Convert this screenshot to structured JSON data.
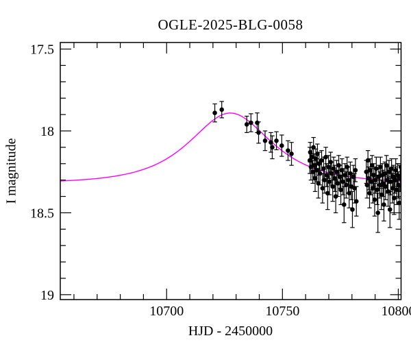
{
  "window": {
    "background": "#ffffff",
    "ink": "#000000"
  },
  "chart_data": {
    "type": "scatter",
    "title": "OGLE-2025-BLG-0058",
    "xlabel": "HJD - 2450000",
    "ylabel": "I magnitude",
    "grid": false,
    "legend": "none",
    "x_axis": {
      "range": [
        10654.1,
        10801.2
      ],
      "major_ticks": [
        10700,
        10750,
        10800
      ],
      "tick_labels": [
        "10700",
        "10750",
        "10800"
      ],
      "minor_step": 10
    },
    "y_axis": {
      "range": [
        17.46,
        19.03
      ],
      "inverted": true,
      "major_ticks": [
        17.5,
        18.0,
        18.5,
        19.0
      ],
      "tick_labels": [
        "17.5",
        "18",
        "18.5",
        "19"
      ],
      "minor_step": 0.1
    },
    "model_curve": {
      "kind": "paczynski_microlensing",
      "color": "#ff00ff",
      "baseline_mag": 18.32,
      "t0": 10727.5,
      "u0": 0.84,
      "tE_days": 23.5,
      "peak_mag": 17.89
    },
    "points_color": "#000000",
    "points": [
      [
        10720.8,
        17.89,
        0.055
      ],
      [
        10723.8,
        17.87,
        0.05
      ],
      [
        10734.6,
        17.96,
        0.05
      ],
      [
        10736.4,
        17.95,
        0.055
      ],
      [
        10739.1,
        17.95,
        0.06
      ],
      [
        10739.7,
        18.01,
        0.065
      ],
      [
        10742.5,
        18.06,
        0.06
      ],
      [
        10745.0,
        18.07,
        0.06
      ],
      [
        10745.6,
        18.1,
        0.07
      ],
      [
        10747.4,
        18.06,
        0.055
      ],
      [
        10749.7,
        18.09,
        0.065
      ],
      [
        10752.4,
        18.12,
        0.06
      ],
      [
        10753.9,
        18.14,
        0.07
      ],
      [
        10761.8,
        18.18,
        0.08
      ],
      [
        10762.0,
        18.13,
        0.06
      ],
      [
        10762.3,
        18.22,
        0.08
      ],
      [
        10762.8,
        18.16,
        0.06
      ],
      [
        10763.1,
        18.25,
        0.07
      ],
      [
        10763.4,
        18.1,
        0.06
      ],
      [
        10763.8,
        18.21,
        0.07
      ],
      [
        10764.1,
        18.29,
        0.08
      ],
      [
        10764.4,
        18.17,
        0.06
      ],
      [
        10764.8,
        18.24,
        0.07
      ],
      [
        10765.1,
        18.14,
        0.06
      ],
      [
        10765.5,
        18.32,
        0.09
      ],
      [
        10765.8,
        18.2,
        0.07
      ],
      [
        10766.2,
        18.26,
        0.07
      ],
      [
        10766.9,
        18.18,
        0.06
      ],
      [
        10767.3,
        18.35,
        0.09
      ],
      [
        10767.8,
        18.23,
        0.07
      ],
      [
        10768.2,
        18.3,
        0.08
      ],
      [
        10768.7,
        18.16,
        0.06
      ],
      [
        10769.1,
        18.27,
        0.07
      ],
      [
        10769.5,
        18.38,
        0.1
      ],
      [
        10769.9,
        18.22,
        0.07
      ],
      [
        10770.3,
        18.31,
        0.08
      ],
      [
        10770.8,
        18.19,
        0.06
      ],
      [
        10771.2,
        18.26,
        0.07
      ],
      [
        10771.7,
        18.34,
        0.09
      ],
      [
        10772.1,
        18.23,
        0.07
      ],
      [
        10772.6,
        18.29,
        0.08
      ],
      [
        10773.0,
        18.4,
        0.1
      ],
      [
        10773.4,
        18.25,
        0.07
      ],
      [
        10773.9,
        18.32,
        0.08
      ],
      [
        10774.3,
        18.21,
        0.06
      ],
      [
        10774.8,
        18.28,
        0.07
      ],
      [
        10775.2,
        18.36,
        0.09
      ],
      [
        10775.7,
        18.24,
        0.07
      ],
      [
        10776.1,
        18.31,
        0.08
      ],
      [
        10776.6,
        18.45,
        0.11
      ],
      [
        10777.0,
        18.27,
        0.07
      ],
      [
        10777.5,
        18.33,
        0.08
      ],
      [
        10777.9,
        18.22,
        0.06
      ],
      [
        10778.4,
        18.3,
        0.08
      ],
      [
        10778.8,
        18.38,
        0.09
      ],
      [
        10779.3,
        18.26,
        0.07
      ],
      [
        10779.7,
        18.34,
        0.08
      ],
      [
        10780.2,
        18.48,
        0.11
      ],
      [
        10780.6,
        18.28,
        0.07
      ],
      [
        10781.1,
        18.35,
        0.09
      ],
      [
        10781.5,
        18.24,
        0.07
      ],
      [
        10781.9,
        18.43,
        0.09
      ],
      [
        10786.2,
        18.25,
        0.07
      ],
      [
        10786.5,
        18.33,
        0.08
      ],
      [
        10786.9,
        18.18,
        0.06
      ],
      [
        10787.2,
        18.29,
        0.07
      ],
      [
        10787.6,
        18.38,
        0.09
      ],
      [
        10787.9,
        18.24,
        0.07
      ],
      [
        10788.3,
        18.31,
        0.08
      ],
      [
        10788.7,
        18.21,
        0.06
      ],
      [
        10789.0,
        18.35,
        0.09
      ],
      [
        10789.4,
        18.27,
        0.07
      ],
      [
        10789.8,
        18.42,
        0.1
      ],
      [
        10790.1,
        18.3,
        0.08
      ],
      [
        10790.5,
        18.23,
        0.07
      ],
      [
        10790.9,
        18.36,
        0.09
      ],
      [
        10791.2,
        18.5,
        0.12
      ],
      [
        10791.6,
        18.28,
        0.07
      ],
      [
        10792.0,
        18.33,
        0.08
      ],
      [
        10792.3,
        18.22,
        0.06
      ],
      [
        10792.7,
        18.39,
        0.09
      ],
      [
        10793.1,
        18.27,
        0.07
      ],
      [
        10793.4,
        18.32,
        0.08
      ],
      [
        10793.8,
        18.45,
        0.1
      ],
      [
        10794.2,
        18.26,
        0.07
      ],
      [
        10794.5,
        18.34,
        0.08
      ],
      [
        10794.9,
        18.21,
        0.06
      ],
      [
        10795.3,
        18.3,
        0.08
      ],
      [
        10795.6,
        18.37,
        0.09
      ],
      [
        10796.0,
        18.25,
        0.07
      ],
      [
        10796.4,
        18.48,
        0.11
      ],
      [
        10796.7,
        18.31,
        0.08
      ],
      [
        10797.1,
        18.23,
        0.06
      ],
      [
        10797.5,
        18.35,
        0.09
      ],
      [
        10797.8,
        18.28,
        0.07
      ],
      [
        10798.2,
        18.41,
        0.1
      ],
      [
        10798.6,
        18.3,
        0.08
      ],
      [
        10798.9,
        18.24,
        0.07
      ],
      [
        10799.3,
        18.36,
        0.09
      ],
      [
        10799.7,
        18.27,
        0.07
      ],
      [
        10800.0,
        18.33,
        0.08
      ],
      [
        10800.4,
        18.44,
        0.1
      ],
      [
        10800.8,
        18.29,
        0.08
      ],
      [
        10801.1,
        18.22,
        0.07
      ]
    ]
  }
}
